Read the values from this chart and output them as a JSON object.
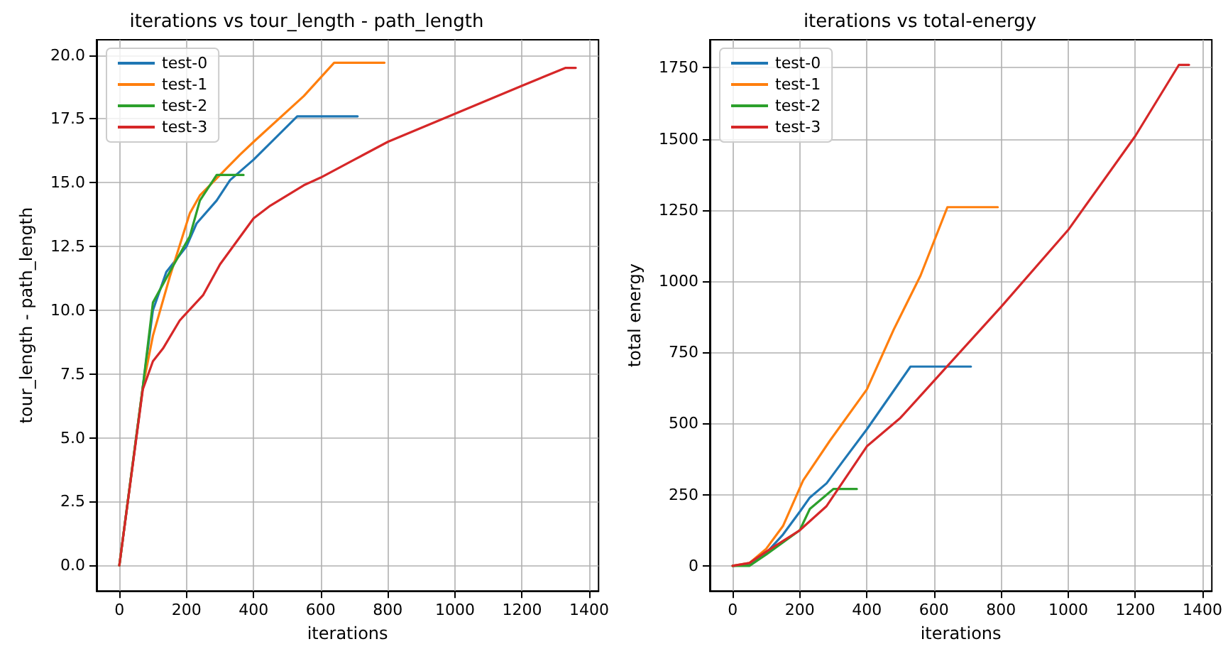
{
  "chart_data": [
    {
      "type": "line",
      "title": "iterations vs tour_length - path_length",
      "xlabel": "iterations",
      "ylabel": "tour_length - path_length",
      "xlim": [
        -68,
        1428
      ],
      "xticks": [
        0,
        200,
        400,
        600,
        800,
        1000,
        1200,
        1400
      ],
      "ylim": [
        -1,
        20.6
      ],
      "yticks": [
        {
          "value": 0,
          "label": "0.0"
        },
        {
          "value": 2.5,
          "label": "2.5"
        },
        {
          "value": 5,
          "label": "5.0"
        },
        {
          "value": 7.5,
          "label": "7.5"
        },
        {
          "value": 10,
          "label": "10.0"
        },
        {
          "value": 12.5,
          "label": "12.5"
        },
        {
          "value": 15,
          "label": "15.0"
        },
        {
          "value": 17.5,
          "label": "17.5"
        },
        {
          "value": 20,
          "label": "20.0"
        }
      ],
      "grid": true,
      "legend": "top left",
      "marker": "none",
      "line_style": "solid",
      "series": [
        {
          "name": "test-0",
          "color": "#1f77b4",
          "x": [
            0,
            70,
            100,
            140,
            200,
            230,
            290,
            330,
            400,
            530,
            710
          ],
          "values": [
            0,
            7,
            10,
            11.5,
            12.5,
            13.4,
            14.3,
            15.1,
            15.9,
            17.6,
            17.6
          ]
        },
        {
          "name": "test-1",
          "color": "#ff7f0e",
          "x": [
            0,
            70,
            100,
            150,
            210,
            240,
            300,
            360,
            400,
            550,
            640,
            790
          ],
          "values": [
            0,
            7,
            9,
            11.3,
            13.8,
            14.5,
            15.3,
            16.1,
            16.6,
            18.4,
            19.7,
            19.7
          ]
        },
        {
          "name": "test-2",
          "color": "#2ca02c",
          "x": [
            0,
            70,
            100,
            150,
            210,
            240,
            290,
            370
          ],
          "values": [
            0,
            7,
            10.3,
            11.5,
            12.9,
            14.3,
            15.3,
            15.3
          ]
        },
        {
          "name": "test-3",
          "color": "#d62728",
          "x": [
            0,
            70,
            100,
            130,
            180,
            250,
            300,
            400,
            450,
            550,
            600,
            700,
            800,
            1000,
            1200,
            1330,
            1360
          ],
          "values": [
            0,
            6.9,
            8,
            8.5,
            9.6,
            10.6,
            11.8,
            13.6,
            14.1,
            14.9,
            15.2,
            15.9,
            16.6,
            17.7,
            18.8,
            19.5,
            19.5
          ]
        }
      ]
    },
    {
      "type": "line",
      "title": "iterations vs total-energy",
      "xlabel": "iterations",
      "ylabel": "total energy",
      "xlim": [
        -68,
        1428
      ],
      "xticks": [
        0,
        200,
        400,
        600,
        800,
        1000,
        1200,
        1400
      ],
      "ylim": [
        -88,
        1848
      ],
      "yticks": [
        0,
        250,
        500,
        750,
        1000,
        1250,
        1500,
        1750
      ],
      "grid": true,
      "legend": "top left",
      "marker": "none",
      "line_style": "solid",
      "series": [
        {
          "name": "test-0",
          "color": "#1f77b4",
          "x": [
            0,
            50,
            100,
            150,
            200,
            230,
            280,
            330,
            400,
            530,
            710
          ],
          "values": [
            0,
            5,
            45,
            110,
            190,
            240,
            290,
            370,
            480,
            700,
            700
          ]
        },
        {
          "name": "test-1",
          "color": "#ff7f0e",
          "x": [
            0,
            50,
            100,
            150,
            210,
            290,
            400,
            480,
            560,
            640,
            790
          ],
          "values": [
            0,
            10,
            60,
            140,
            300,
            440,
            620,
            830,
            1020,
            1260,
            1260
          ]
        },
        {
          "name": "test-2",
          "color": "#2ca02c",
          "x": [
            0,
            50,
            100,
            200,
            230,
            300,
            370
          ],
          "values": [
            0,
            0,
            40,
            125,
            200,
            270,
            270
          ]
        },
        {
          "name": "test-3",
          "color": "#d62728",
          "x": [
            0,
            50,
            100,
            200,
            280,
            400,
            500,
            600,
            800,
            1000,
            1200,
            1330,
            1360
          ],
          "values": [
            0,
            10,
            50,
            125,
            210,
            420,
            520,
            650,
            910,
            1180,
            1510,
            1760,
            1760
          ]
        }
      ]
    }
  ]
}
